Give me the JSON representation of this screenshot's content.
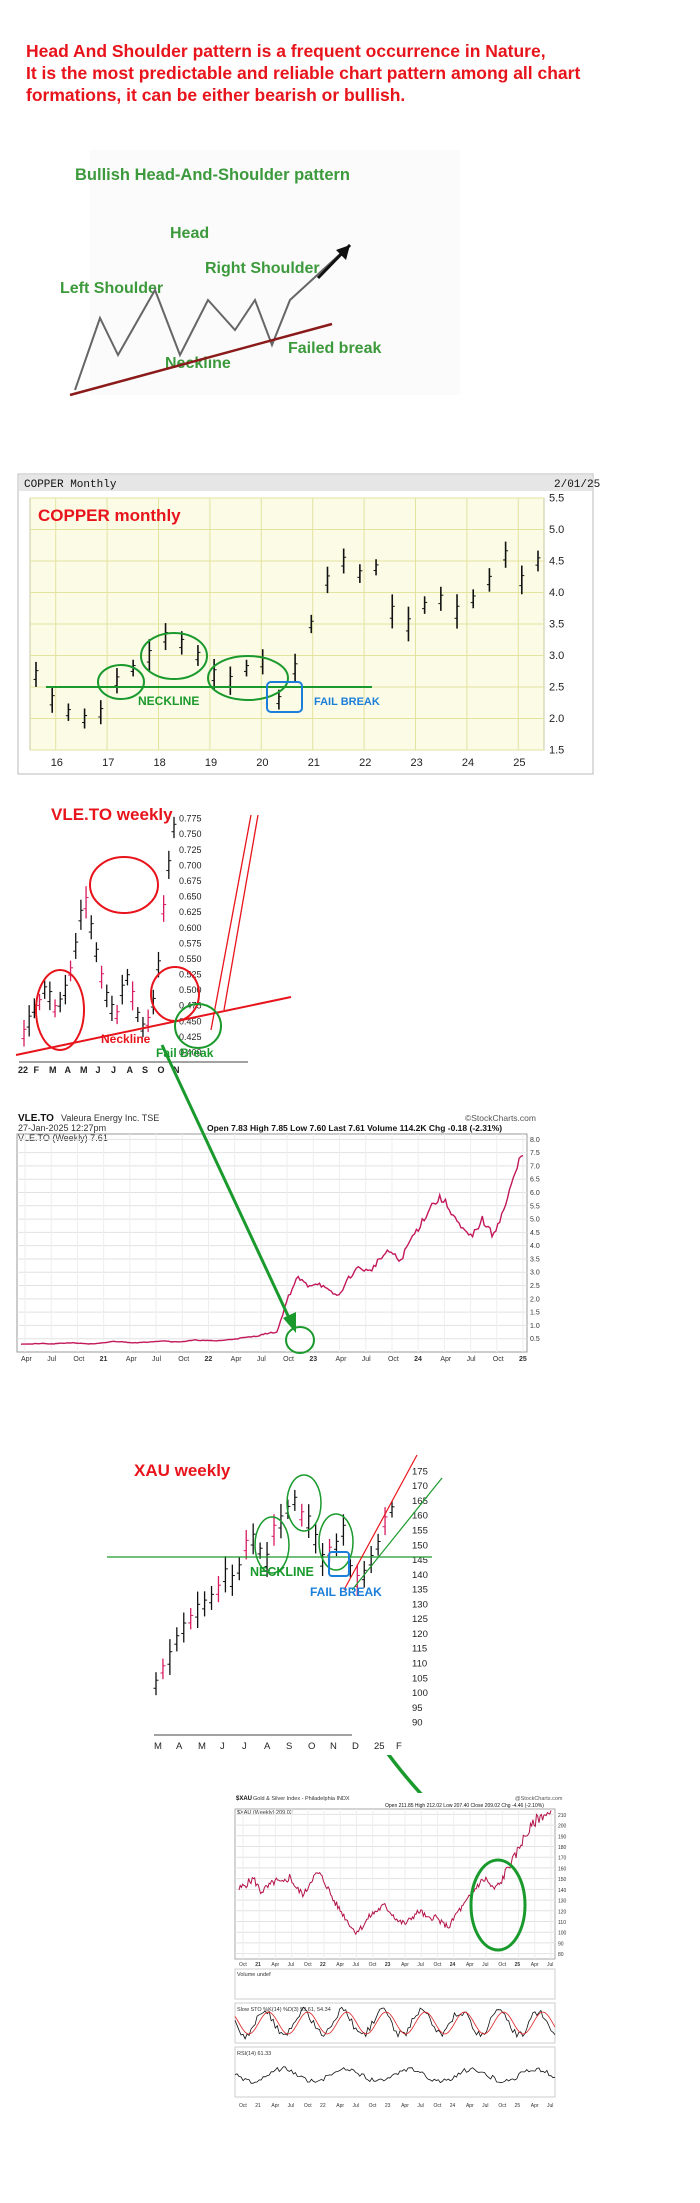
{
  "intro": {
    "line1": "Head And Shoulder pattern is a frequent occurrence in Nature,",
    "line2": "It is the most predictable and reliable chart pattern among all chart",
    "line3": "formations, it can be either bearish or bullish."
  },
  "colors": {
    "red": "#e8141b",
    "green": "#1a9a2c",
    "blue": "#1b7fd9",
    "grid_yellow": "#fbfbe6",
    "gridline": "#e3e3a0"
  },
  "schematic": {
    "title": "Bullish Head-And-Shoulder pattern",
    "head": "Head",
    "left_shoulder": "Left Shoulder",
    "right_shoulder": "Right Shoulder",
    "neckline": "Neckline",
    "failed_break": "Failed break"
  },
  "chart_data": [
    {
      "id": "copper",
      "type": "bar",
      "title": "COPPER   monthly",
      "header_left": "COPPER Monthly",
      "header_right": "2/01/25",
      "x_ticks": [
        "16",
        "17",
        "18",
        "19",
        "20",
        "21",
        "22",
        "23",
        "24",
        "25"
      ],
      "y_ticks": [
        "1.5",
        "2.0",
        "2.5",
        "3.0",
        "3.5",
        "4.0",
        "4.5",
        "5.0",
        "5.5"
      ],
      "ylim": [
        1.5,
        5.5
      ],
      "annotations": {
        "neckline": "NECKLINE",
        "fail_break": "FAIL BREAK"
      },
      "x": [
        15.7,
        16.0,
        16.3,
        16.6,
        16.9,
        17.2,
        17.5,
        17.8,
        18.1,
        18.4,
        18.7,
        19.0,
        19.3,
        19.6,
        19.9,
        20.2,
        20.5,
        20.8,
        21.1,
        21.4,
        21.7,
        22.0,
        22.3,
        22.6,
        22.9,
        23.2,
        23.5,
        23.8,
        24.1,
        24.4,
        24.7,
        25.0
      ],
      "values": [
        2.7,
        2.3,
        2.1,
        2.0,
        2.1,
        2.6,
        2.8,
        3.0,
        3.3,
        3.2,
        3.0,
        2.7,
        2.6,
        2.8,
        2.9,
        2.3,
        2.8,
        3.5,
        4.2,
        4.5,
        4.3,
        4.4,
        3.7,
        3.5,
        3.8,
        3.9,
        3.7,
        3.9,
        4.2,
        4.6,
        4.2,
        4.5
      ]
    },
    {
      "id": "vle_weekly",
      "type": "bar",
      "title": "VLE.TO  weekly",
      "x_ticks": [
        "22",
        "F",
        "M",
        "A",
        "M",
        "J",
        "J",
        "A",
        "S",
        "O",
        "N"
      ],
      "y_ticks": [
        "0.400",
        "0.425",
        "0.450",
        "0.475",
        "0.500",
        "0.525",
        "0.550",
        "0.575",
        "0.600",
        "0.625",
        "0.650",
        "0.675",
        "0.700",
        "0.725",
        "0.750",
        "0.775"
      ],
      "ylim": [
        0.4,
        0.78
      ],
      "annotations": {
        "neckline": "Neckline",
        "fail_break": "Fail Break"
      },
      "values": [
        0.43,
        0.45,
        0.47,
        0.48,
        0.5,
        0.49,
        0.47,
        0.48,
        0.5,
        0.53,
        0.57,
        0.62,
        0.64,
        0.6,
        0.56,
        0.52,
        0.49,
        0.47,
        0.46,
        0.5,
        0.52,
        0.49,
        0.46,
        0.44,
        0.45,
        0.48,
        0.54,
        0.63,
        0.7,
        0.76
      ]
    },
    {
      "id": "vle_stockcharts",
      "type": "line",
      "symbol": "VLE.TO",
      "company": "Valeura Energy Inc.  TSE",
      "date": "27-Jan-2025 12:27pm",
      "credit": "©StockCharts.com",
      "ohlc": "Open 7.83  High 7.85  Low 7.60  Last 7.61  Volume 114.2K  Chg -0.18 (-2.31%)",
      "legend": "VLE.TO (Weekly) 7.61",
      "x_ticks": [
        "Apr",
        "Jul",
        "Oct",
        "21",
        "Apr",
        "Jul",
        "Oct",
        "22",
        "Apr",
        "Jul",
        "Oct",
        "23",
        "Apr",
        "Jul",
        "Oct",
        "24",
        "Apr",
        "Jul",
        "Oct",
        "25"
      ],
      "y_ticks": [
        "0.5",
        "1.0",
        "1.5",
        "2.0",
        "2.5",
        "3.0",
        "3.5",
        "4.0",
        "4.5",
        "5.0",
        "5.5",
        "6.0",
        "6.5",
        "7.0",
        "7.5",
        "8.0"
      ],
      "ylim": [
        0,
        8.2
      ],
      "values": [
        0.3,
        0.3,
        0.32,
        0.3,
        0.33,
        0.35,
        0.32,
        0.3,
        0.34,
        0.4,
        0.38,
        0.35,
        0.36,
        0.4,
        0.42,
        0.38,
        0.4,
        0.45,
        0.43,
        0.42,
        0.45,
        0.5,
        0.55,
        0.6,
        0.7,
        0.75,
        2.0,
        2.8,
        2.5,
        2.6,
        2.3,
        2.1,
        2.8,
        3.2,
        3.0,
        3.5,
        3.8,
        3.4,
        4.2,
        4.8,
        5.5,
        5.8,
        5.3,
        4.6,
        4.3,
        5.0,
        4.4,
        5.2,
        6.4,
        7.6
      ]
    },
    {
      "id": "xau_weekly",
      "type": "bar",
      "title": "XAU  weekly",
      "x_ticks": [
        "M",
        "A",
        "M",
        "J",
        "J",
        "A",
        "S",
        "O",
        "N",
        "D",
        "25",
        "F"
      ],
      "y_ticks": [
        "90",
        "95",
        "100",
        "105",
        "110",
        "115",
        "120",
        "125",
        "130",
        "135",
        "140",
        "145",
        "150",
        "155",
        "160",
        "165",
        "170",
        "175"
      ],
      "ylim": [
        88,
        178
      ],
      "annotations": {
        "neckline": "NECKLINE",
        "fail_break": "FAIL BREAK"
      },
      "values": [
        103,
        108,
        112,
        118,
        122,
        125,
        128,
        130,
        132,
        135,
        140,
        138,
        142,
        150,
        152,
        148,
        145,
        155,
        158,
        162,
        165,
        160,
        158,
        152,
        145,
        148,
        150,
        155,
        142,
        138,
        140,
        145,
        150,
        158,
        162
      ]
    },
    {
      "id": "xau_stockcharts",
      "type": "line",
      "symbol": "$XAU",
      "company": "Gold & Silver Index - Philadelphia INDX",
      "credit": "@StockCharts.com",
      "ohlc": "Open 211.85  High 212.02  Low 207.40  Close 209.02  Chg -4.46 (-2.10%)",
      "legend": "$XAU (Weekly) 209.02",
      "x_ticks": [
        "Oct",
        "21",
        "Apr",
        "Jul",
        "Oct",
        "22",
        "Apr",
        "Jul",
        "Oct",
        "23",
        "Apr",
        "Jul",
        "Oct",
        "24",
        "Apr",
        "Jul",
        "Oct",
        "25",
        "Apr",
        "Jul"
      ],
      "y_ticks": [
        "80",
        "90",
        "100",
        "110",
        "120",
        "130",
        "140",
        "150",
        "160",
        "170",
        "180",
        "190",
        "200",
        "210"
      ],
      "ylim": [
        75,
        215
      ],
      "volume_label": "Volume undef",
      "stoch_label": "Slow STO %K(14) %D(3) 53.61, 54.34",
      "rsi_label": "RSI(14) 61.33",
      "values": [
        140,
        145,
        150,
        138,
        142,
        148,
        145,
        152,
        140,
        135,
        150,
        155,
        145,
        130,
        120,
        110,
        100,
        105,
        115,
        120,
        125,
        118,
        110,
        108,
        115,
        120,
        112,
        115,
        108,
        105,
        118,
        125,
        135,
        145,
        150,
        140,
        145,
        160,
        170,
        185,
        195,
        205,
        210,
        209
      ]
    }
  ]
}
